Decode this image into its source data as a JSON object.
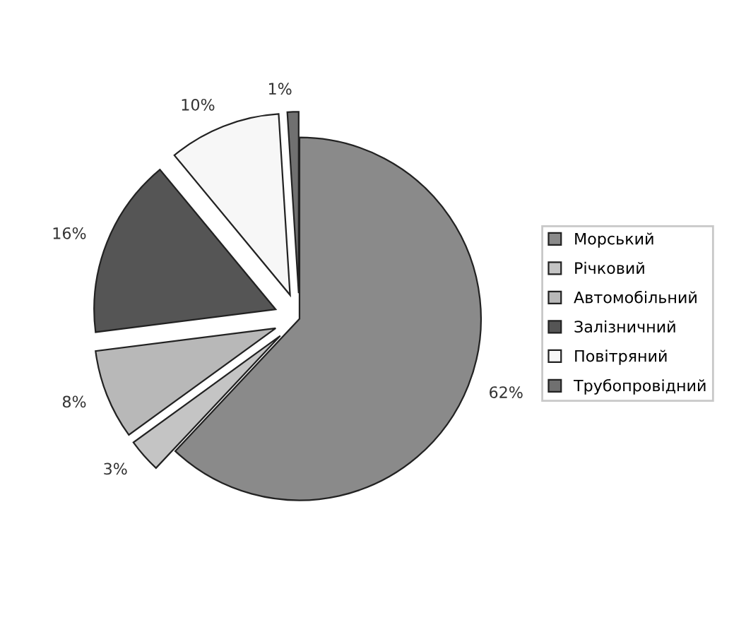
{
  "chart_data": {
    "type": "pie",
    "categories": [
      "Морський",
      "Річковий",
      "Автомобільний",
      "Залізничний",
      "Повітряний",
      "Трубопровідний"
    ],
    "values": [
      62,
      3,
      8,
      16,
      10,
      1
    ],
    "colors": [
      "#8a8a8a",
      "#c4c4c4",
      "#b8b8b8",
      "#555555",
      "#f7f7f7",
      "#707070"
    ],
    "value_labels": [
      "62%",
      "3%",
      "8%",
      "16%",
      "10%",
      "1%"
    ],
    "legend": "right"
  }
}
